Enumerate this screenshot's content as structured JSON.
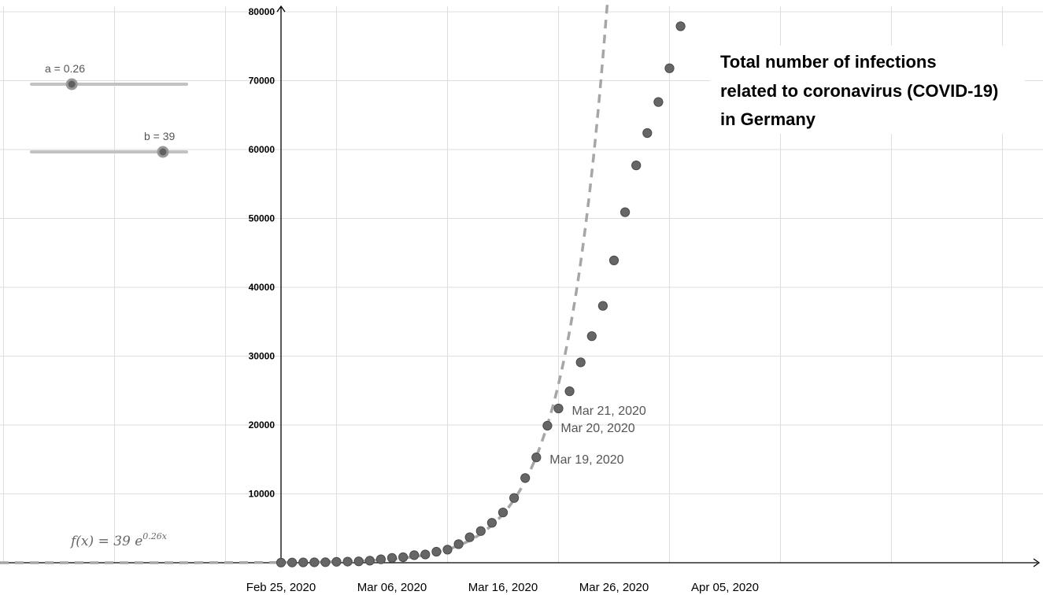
{
  "chart_data": {
    "type": "scatter",
    "title_lines": [
      "Total number of infections",
      "related to coronavirus (COVID-19)",
      "in Germany"
    ],
    "x_tick_labels": [
      "Feb 25, 2020",
      "Mar 06, 2020",
      "Mar 16, 2020",
      "Mar 26, 2020",
      "Apr 05, 2020"
    ],
    "x_tick_day_offsets": [
      0,
      10,
      20,
      30,
      40
    ],
    "y_ticks": [
      10000,
      20000,
      30000,
      40000,
      50000,
      60000,
      70000,
      80000
    ],
    "ylim": [
      0,
      80000
    ],
    "grid": true,
    "series": [
      {
        "kind": "points",
        "color": "#666666",
        "points": [
          {
            "date": "Feb 25, 2020",
            "y": 20
          },
          {
            "date": "Feb 26, 2020",
            "y": 30
          },
          {
            "date": "Feb 27, 2020",
            "y": 50
          },
          {
            "date": "Feb 28, 2020",
            "y": 60
          },
          {
            "date": "Feb 29, 2020",
            "y": 80
          },
          {
            "date": "Mar 01, 2020",
            "y": 130
          },
          {
            "date": "Mar 02, 2020",
            "y": 160
          },
          {
            "date": "Mar 03, 2020",
            "y": 200
          },
          {
            "date": "Mar 04, 2020",
            "y": 300
          },
          {
            "date": "Mar 05, 2020",
            "y": 500
          },
          {
            "date": "Mar 06, 2020",
            "y": 700
          },
          {
            "date": "Mar 07, 2020",
            "y": 800
          },
          {
            "date": "Mar 08, 2020",
            "y": 1100
          },
          {
            "date": "Mar 09, 2020",
            "y": 1200
          },
          {
            "date": "Mar 10, 2020",
            "y": 1600
          },
          {
            "date": "Mar 11, 2020",
            "y": 1900
          },
          {
            "date": "Mar 12, 2020",
            "y": 2700
          },
          {
            "date": "Mar 13, 2020",
            "y": 3700
          },
          {
            "date": "Mar 14, 2020",
            "y": 4600
          },
          {
            "date": "Mar 15, 2020",
            "y": 5800
          },
          {
            "date": "Mar 16, 2020",
            "y": 7300
          },
          {
            "date": "Mar 17, 2020",
            "y": 9400
          },
          {
            "date": "Mar 18, 2020",
            "y": 12300
          },
          {
            "date": "Mar 19, 2020",
            "y": 15300
          },
          {
            "date": "Mar 20, 2020",
            "y": 19900
          },
          {
            "date": "Mar 21, 2020",
            "y": 22400
          },
          {
            "date": "Mar 22, 2020",
            "y": 24900
          },
          {
            "date": "Mar 23, 2020",
            "y": 29100
          },
          {
            "date": "Mar 24, 2020",
            "y": 32900
          },
          {
            "date": "Mar 25, 2020",
            "y": 37300
          },
          {
            "date": "Mar 26, 2020",
            "y": 43900
          },
          {
            "date": "Mar 27, 2020",
            "y": 50900
          },
          {
            "date": "Mar 28, 2020",
            "y": 57700
          },
          {
            "date": "Mar 29, 2020",
            "y": 62400
          },
          {
            "date": "Mar 30, 2020",
            "y": 66900
          },
          {
            "date": "Mar 31, 2020",
            "y": 71800
          },
          {
            "date": "Apr 01, 2020",
            "y": 77900
          }
        ]
      },
      {
        "kind": "function",
        "style": "dashed",
        "color": "#a6a6a6",
        "a": 0.26,
        "b": 39
      }
    ],
    "point_annotations": [
      {
        "date": "Mar 19, 2020",
        "text": "Mar 19, 2020"
      },
      {
        "date": "Mar 20, 2020",
        "text": "Mar 20, 2020"
      },
      {
        "date": "Mar 21, 2020",
        "text": "Mar 21, 2020"
      }
    ]
  },
  "sliders": [
    {
      "label": "a = 0.26",
      "value": 0.26,
      "min": 0,
      "max": 1
    },
    {
      "label": "b = 39",
      "value": 39,
      "min": 0,
      "max": 46
    }
  ],
  "formula": {
    "prefix": "f(x)  =  39 e",
    "exponent": "0.26x"
  }
}
